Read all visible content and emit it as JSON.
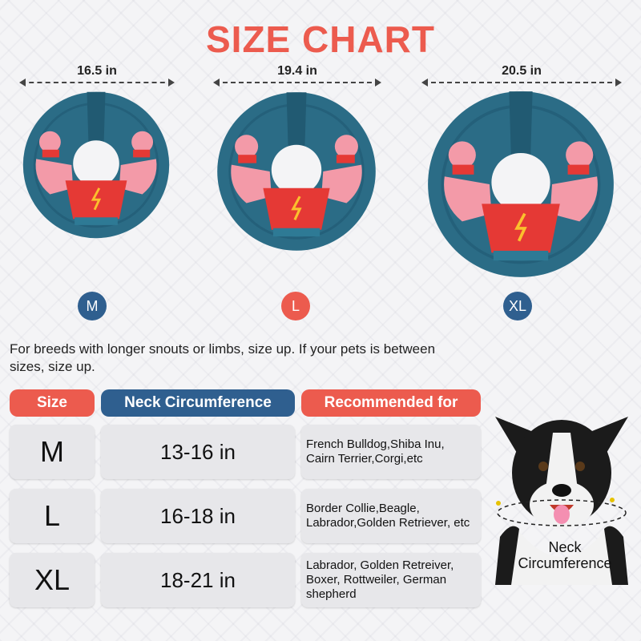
{
  "title": "SIZE CHART",
  "colors": {
    "title": "#ec5b4e",
    "red": "#ec5b4e",
    "blue": "#2f5f8f",
    "collar": "#2b6c86"
  },
  "sizes": [
    {
      "dimension": "16.5 in",
      "size": "M",
      "badge_color": "blue"
    },
    {
      "dimension": "19.4 in",
      "size": "L",
      "badge_color": "red"
    },
    {
      "dimension": "20.5 in",
      "size": "XL",
      "badge_color": "blue"
    }
  ],
  "note": "For breeds with longer snouts or limbs, size up. If your pets is between sizes, size up.",
  "table": {
    "headers": [
      "Size",
      "Neck Circumference",
      "Recommended for"
    ],
    "rows": [
      {
        "size": "M",
        "neck": "13-16 in",
        "recommended": "French Bulldog,Shiba Inu, Cairn Terrier,Corgi,etc"
      },
      {
        "size": "L",
        "neck": "16-18 in",
        "recommended": "Border Collie,Beagle, Labrador,Golden Retriever, etc"
      },
      {
        "size": "XL",
        "neck": "18-21 in",
        "recommended": "Labrador, Golden Retreiver, Boxer, Rottweiler, German shepherd"
      }
    ]
  },
  "dog": {
    "label": "Neck Circumference"
  }
}
